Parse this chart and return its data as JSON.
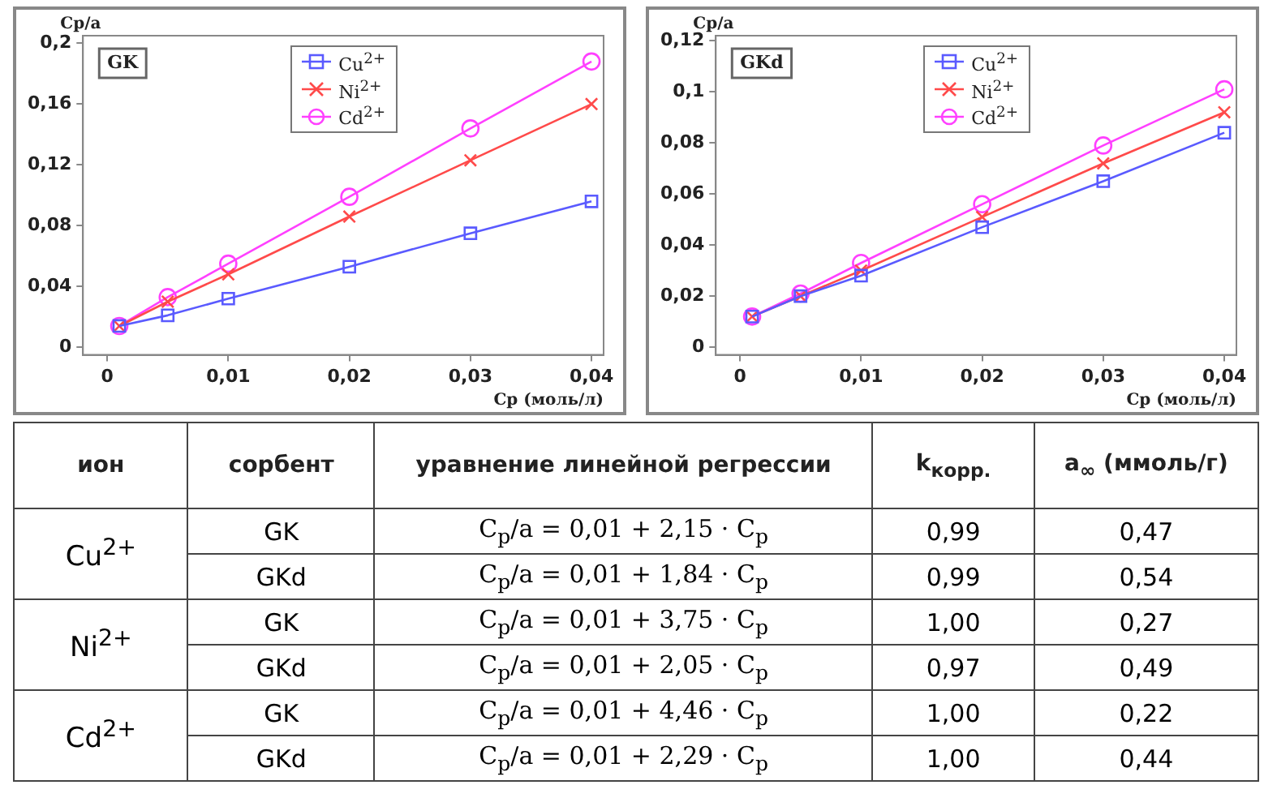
{
  "chart_data": [
    {
      "type": "line",
      "title": "GK",
      "xlabel": "Cp (моль/л)",
      "ylabel": "Cp/a",
      "x": [
        0.001,
        0.005,
        0.01,
        0.02,
        0.03,
        0.04
      ],
      "series": [
        {
          "name": "Cu$^{2+}$",
          "color": "#5a5aff",
          "marker": "square",
          "values": [
            0.014,
            0.021,
            0.032,
            0.053,
            0.075,
            0.096
          ]
        },
        {
          "name": "Ni$^{2+}$",
          "color": "#ff4a4a",
          "marker": "cross",
          "values": [
            0.014,
            0.03,
            0.048,
            0.086,
            0.123,
            0.16
          ]
        },
        {
          "name": "Cd$^{2+}$",
          "color": "#ff40ff",
          "marker": "circle",
          "values": [
            0.014,
            0.033,
            0.055,
            0.099,
            0.144,
            0.188
          ]
        }
      ],
      "xlim": [
        -0.002,
        0.041
      ],
      "xticks": [
        0,
        {
          "value": 0.01,
          "label": "0,01"
        },
        {
          "value": 0.02,
          "label": "0,02"
        },
        {
          "value": 0.03,
          "label": "0,03"
        },
        {
          "value": 0.04,
          "label": "0,04"
        }
      ],
      "ylim": [
        -0.005,
        0.205
      ],
      "yticks": [
        0,
        {
          "value": 0.04,
          "label": "0,04"
        },
        {
          "value": 0.08,
          "label": "0,08"
        },
        {
          "value": 0.12,
          "label": "0,12"
        },
        {
          "value": 0.16,
          "label": "0,16"
        },
        {
          "value": 0.2,
          "label": "0,2"
        }
      ],
      "grid": false,
      "legend": "top"
    },
    {
      "type": "line",
      "title": "GKd",
      "xlabel": "Cp (моль/л)",
      "ylabel": "Cp/a",
      "x": [
        0.001,
        0.005,
        0.01,
        0.02,
        0.03,
        0.04
      ],
      "series": [
        {
          "name": "Cu$^{2+}$",
          "color": "#5a5aff",
          "marker": "square",
          "values": [
            0.012,
            0.02,
            0.028,
            0.047,
            0.065,
            0.084
          ]
        },
        {
          "name": "Ni$^{2+}$",
          "color": "#ff4a4a",
          "marker": "cross",
          "values": [
            0.012,
            0.02,
            0.03,
            0.051,
            0.072,
            0.092
          ]
        },
        {
          "name": "Cd$^{2+}$",
          "color": "#ff40ff",
          "marker": "circle",
          "values": [
            0.012,
            0.021,
            0.033,
            0.056,
            0.079,
            0.101
          ]
        }
      ],
      "xlim": [
        -0.002,
        0.041
      ],
      "xticks": [
        0,
        {
          "value": 0.01,
          "label": "0,01"
        },
        {
          "value": 0.02,
          "label": "0,02"
        },
        {
          "value": 0.03,
          "label": "0,03"
        },
        {
          "value": 0.04,
          "label": "0,04"
        }
      ],
      "ylim": [
        -0.003,
        0.122
      ],
      "yticks": [
        0,
        {
          "value": 0.02,
          "label": "0,02"
        },
        {
          "value": 0.04,
          "label": "0,04"
        },
        {
          "value": 0.06,
          "label": "0,06"
        },
        {
          "value": 0.08,
          "label": "0,08"
        },
        {
          "value": 0.1,
          "label": "0,1"
        },
        {
          "value": 0.12,
          "label": "0,12"
        }
      ],
      "grid": false,
      "legend": "top"
    },
    {
      "type": "other",
      "annotations": [
        "ион",
        "сорбент",
        "уравнение линейной регрессии",
        "k$_{корр.}$",
        "a$_{∞}$ (ммоль/г)",
        "Cu$^{2+}$",
        "GK",
        "C$_{p}$/a = 0,01 + 2,15 · C$_{p}$",
        "0,99",
        "0,47",
        "GKd",
        "C$_{p}$/a = 0,01 + 1,84 · C$_{p}$",
        "0,99",
        "0,54",
        "Ni$^{2+}$",
        "GK",
        "C$_{p}$/a = 0,01 + 3,75 · C$_{p}$",
        "1,00",
        "0,27",
        "GKd",
        "C$_{p}$/a = 0,01 + 2,05 · C$_{p}$",
        "0,97",
        "0,49",
        "Cd$^{2+}$",
        "GK",
        "C$_{p}$/a = 0,01 + 4,46 · C$_{p}$",
        "1,00",
        "0,22",
        "GKd",
        "C$_{p}$/a = 0,01 + 2,29 · C$_{p}$",
        "1,00",
        "0,44"
      ]
    }
  ]
}
